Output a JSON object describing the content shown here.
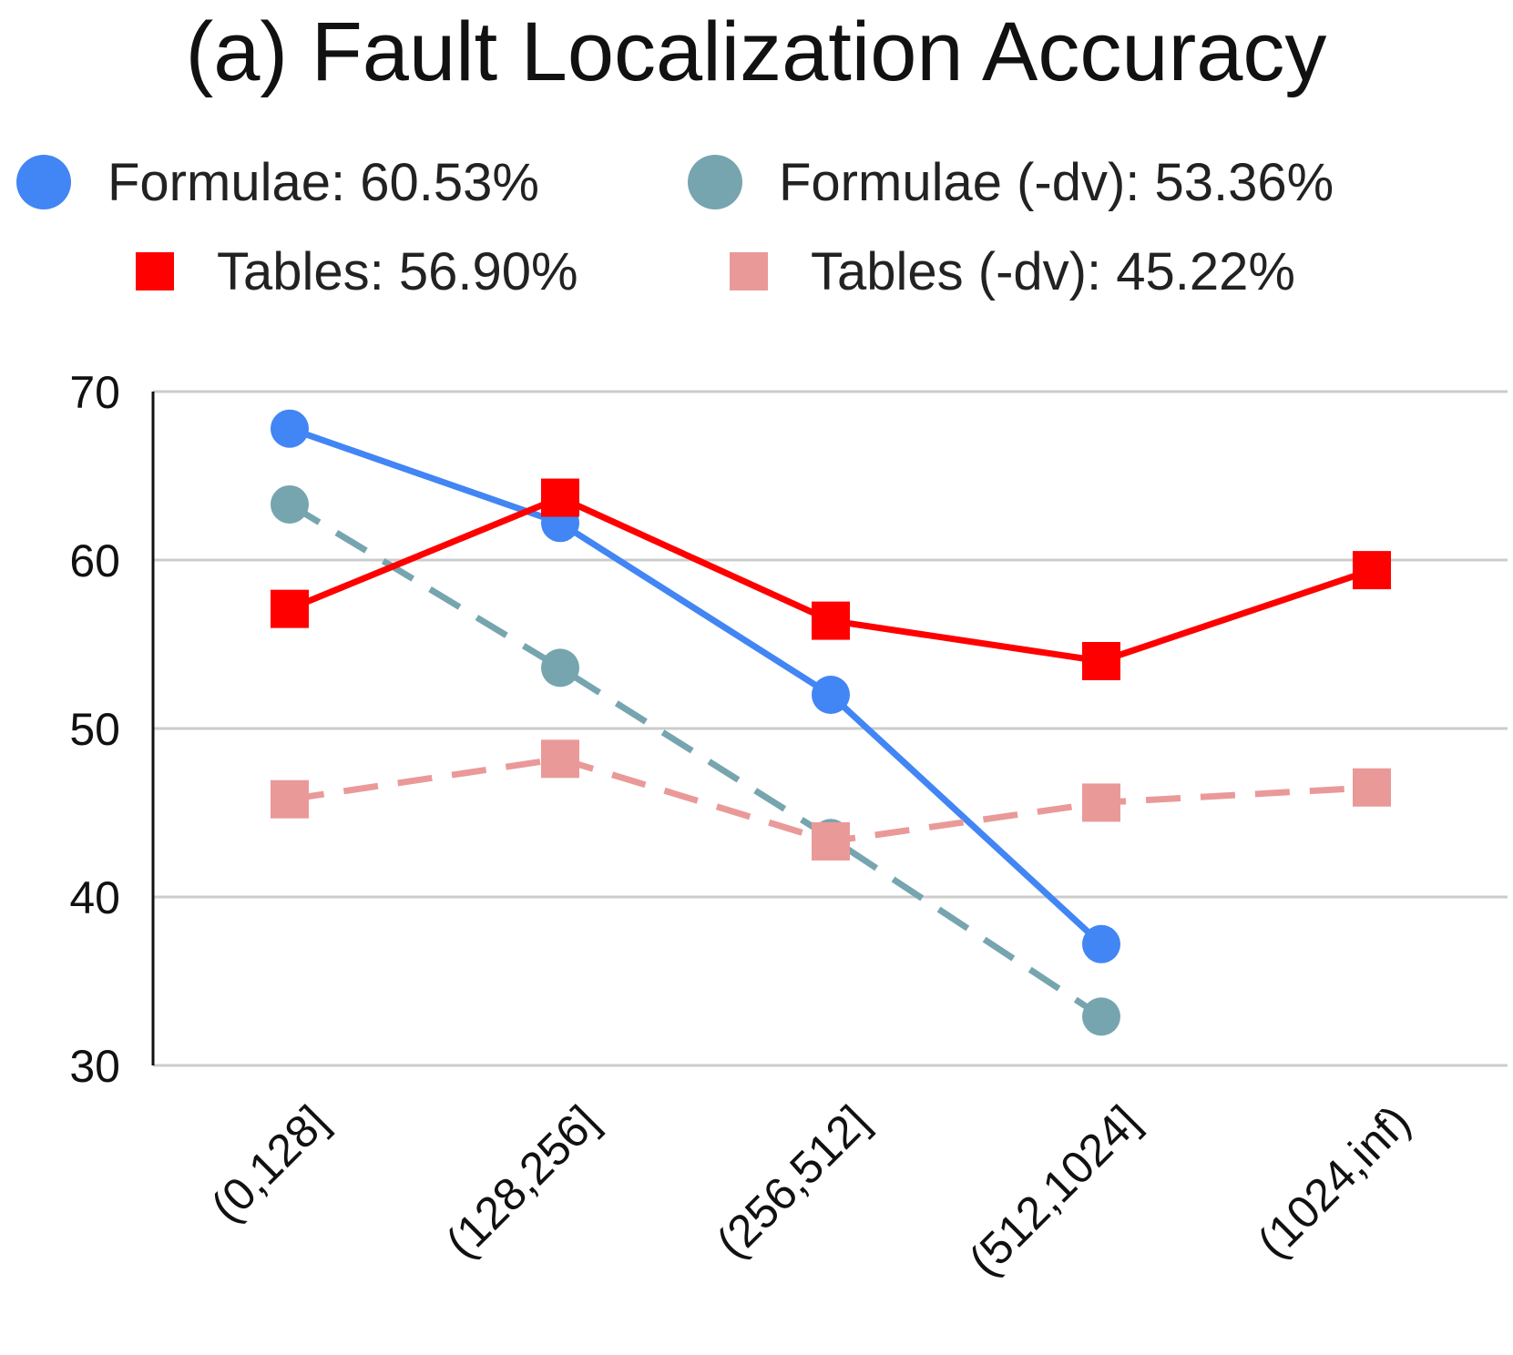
{
  "chart_data": {
    "type": "line",
    "title": "(a) Fault Localization Accuracy",
    "xlabel": "",
    "ylabel": "",
    "categories": [
      "(0,128]",
      "(128,256]",
      "(256,512]",
      "(512,1024]",
      "(1024,inf)"
    ],
    "ylim": [
      30,
      70
    ],
    "yticks": [
      30,
      40,
      50,
      60,
      70
    ],
    "grid": true,
    "legend_position": "top",
    "series": [
      {
        "name": "Formulae: 60.53%",
        "values": [
          67.8,
          62.2,
          52.0,
          37.2,
          null
        ],
        "color": "#4285f4",
        "marker": "circle",
        "dashed": false
      },
      {
        "name": "Formulae (-dv): 53.36%",
        "values": [
          63.3,
          53.6,
          43.5,
          32.9,
          null
        ],
        "color": "#76a5af",
        "marker": "circle",
        "dashed": true
      },
      {
        "name": "Tables: 56.90%",
        "values": [
          57.1,
          63.7,
          56.4,
          54.0,
          59.4
        ],
        "color": "#ff0000",
        "marker": "square",
        "dashed": false
      },
      {
        "name": "Tables (-dv): 45.22%",
        "values": [
          45.8,
          48.2,
          43.3,
          45.6,
          46.5
        ],
        "color": "#ea9999",
        "marker": "square",
        "dashed": true
      }
    ]
  }
}
